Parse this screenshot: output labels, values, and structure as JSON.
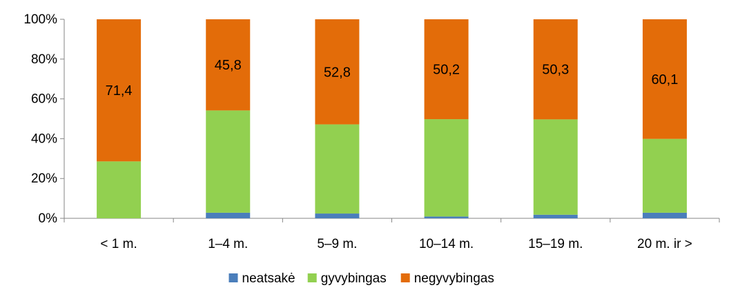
{
  "chart_data": {
    "type": "bar",
    "stacked": true,
    "percent_stacked": true,
    "categories": [
      "< 1 m.",
      "1–4 m.",
      "5–9 m.",
      "10–14 m.",
      "15–19 m.",
      "20 m. ir >"
    ],
    "series": [
      {
        "name": "neatsakė",
        "values": [
          0.0,
          2.8,
          2.4,
          0.9,
          1.8,
          2.8
        ],
        "color": "#4a7ebb"
      },
      {
        "name": "gyvybingas",
        "values": [
          28.6,
          51.4,
          44.8,
          48.9,
          47.9,
          37.1
        ],
        "color": "#92d050"
      },
      {
        "name": "negyvybingas",
        "values": [
          71.4,
          45.8,
          52.8,
          50.2,
          50.3,
          60.1
        ],
        "color": "#e36c09"
      }
    ],
    "data_labels": {
      "series": "negyvybingas",
      "texts": [
        "71,4",
        "45,8",
        "52,8",
        "50,2",
        "50,3",
        "60,1"
      ]
    },
    "y_ticks": [
      0,
      20,
      40,
      60,
      80,
      100
    ],
    "y_tick_labels": [
      "0%",
      "20%",
      "40%",
      "60%",
      "80%",
      "100%"
    ],
    "ylim": [
      0,
      100
    ],
    "grid": false,
    "legend_position": "bottom",
    "title": "",
    "xlabel": "",
    "ylabel": ""
  }
}
